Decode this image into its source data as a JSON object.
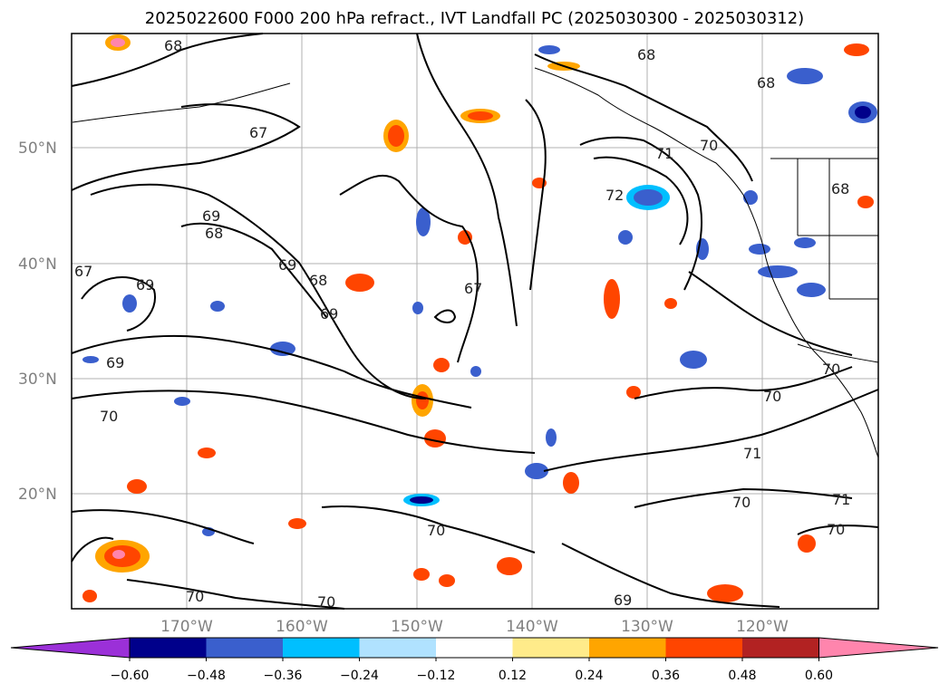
{
  "title": "2025022600 F000 200 hPa refract., IVT Landfall PC (2025030300 - 2025030312)",
  "latitude_labels": [
    "50°N",
    "40°N",
    "30°N",
    "20°N"
  ],
  "longitude_labels": [
    "170°W",
    "160°W",
    "150°W",
    "140°W",
    "130°W",
    "120°W"
  ],
  "colorbar": {
    "ticks": [
      "−0.60",
      "−0.48",
      "−0.36",
      "−0.24",
      "−0.12",
      "0.12",
      "0.24",
      "0.36",
      "0.48",
      "0.60"
    ],
    "colors": [
      "#9b30d8",
      "#00008b",
      "#3a5fcd",
      "#00bfff",
      "#b0e2ff",
      "#ffffff",
      "#ffeb8a",
      "#ffa500",
      "#ff4500",
      "#b22222",
      "#ff85ad"
    ]
  },
  "contour_labels": [
    "68",
    "67",
    "69",
    "68",
    "69",
    "68",
    "69",
    "67",
    "67",
    "69",
    "69",
    "70",
    "68",
    "70",
    "71",
    "72",
    "68",
    "68",
    "70",
    "70",
    "71",
    "70",
    "71",
    "70",
    "69",
    "70",
    "70",
    "70"
  ],
  "colors": {
    "contour": "#000000",
    "grid": "#b0b0b0",
    "axis_text": "#808080"
  }
}
